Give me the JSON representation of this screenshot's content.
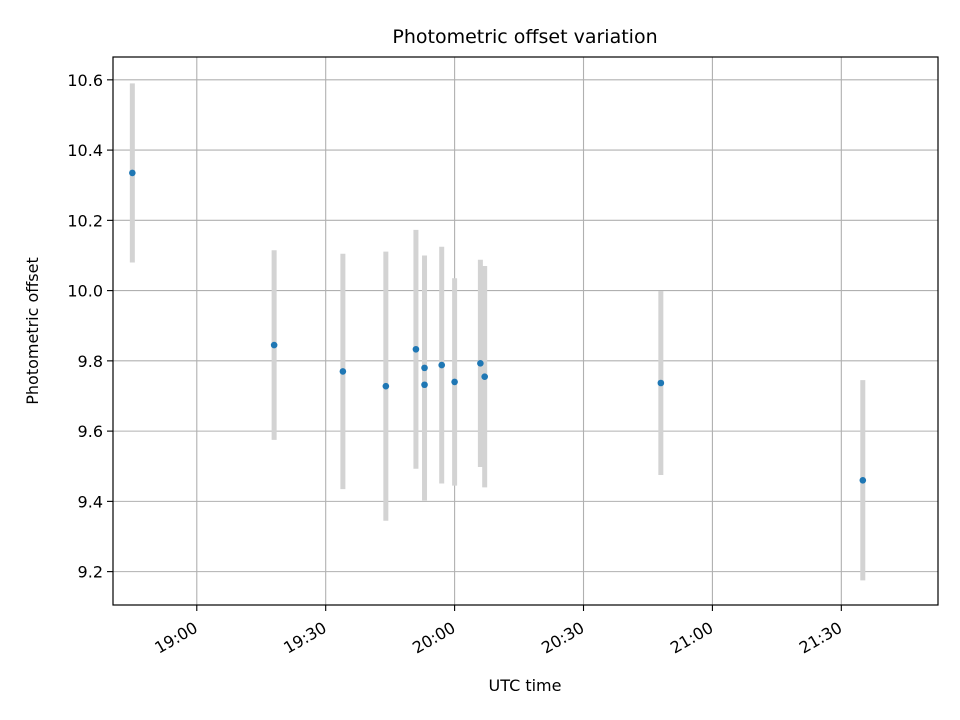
{
  "chart_data": {
    "type": "scatter",
    "title": "Photometric offset variation",
    "xlabel": "UTC time",
    "ylabel": "Photometric offset",
    "x_ticks": [
      "19:00",
      "19:30",
      "20:00",
      "20:30",
      "21:00",
      "21:30"
    ],
    "y_ticks": [
      "9.2",
      "9.4",
      "9.6",
      "9.8",
      "10.0",
      "10.2",
      "10.4",
      "10.6"
    ],
    "xlim": [
      "18:40:30",
      "21:52:30"
    ],
    "ylim": [
      9.105,
      10.665
    ],
    "grid": true,
    "series": [
      {
        "marker_color": "#1f77b4",
        "errorbar_color": "#d3d3d3",
        "points": [
          {
            "x": "18:45",
            "y": 10.335,
            "err": 0.255
          },
          {
            "x": "19:18",
            "y": 9.845,
            "err": 0.27
          },
          {
            "x": "19:34",
            "y": 9.77,
            "err": 0.335
          },
          {
            "x": "19:44",
            "y": 9.728,
            "err": 0.383
          },
          {
            "x": "19:51",
            "y": 9.833,
            "err": 0.34
          },
          {
            "x": "19:53",
            "y": 9.732,
            "err": 0.33
          },
          {
            "x": "19:53",
            "y": 9.78,
            "err": 0.32
          },
          {
            "x": "19:57",
            "y": 9.788,
            "err": 0.337
          },
          {
            "x": "20:00",
            "y": 9.74,
            "err": 0.295
          },
          {
            "x": "20:06",
            "y": 9.793,
            "err": 0.295
          },
          {
            "x": "20:07",
            "y": 9.755,
            "err": 0.315
          },
          {
            "x": "20:48",
            "y": 9.737,
            "err": 0.262
          },
          {
            "x": "21:35",
            "y": 9.46,
            "err": 0.285
          }
        ]
      }
    ]
  }
}
